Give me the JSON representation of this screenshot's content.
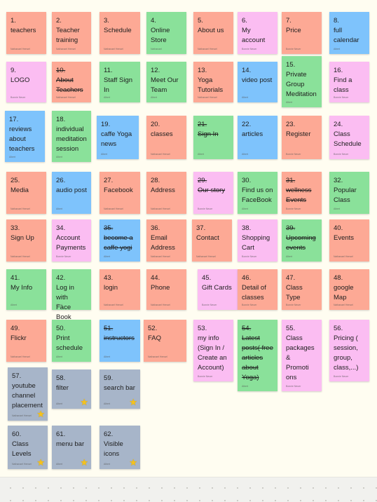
{
  "notes": [
    {
      "text": "1.\nteachers",
      "author": "Nathanael Hensel",
      "color": "#fda995"
    },
    {
      "text": "2.\nTeacher\ntraining",
      "author": "Nathanael Hensel",
      "color": "#fda995"
    },
    {
      "text": "3.\nSchedule",
      "author": "Nathanael Hensel",
      "color": "#fda995"
    },
    {
      "text": "4.\nOnline\nStore",
      "author": "Nathanael",
      "color": "#8ae19a"
    },
    {
      "text": "5.\nAbout us",
      "author": "Nathanael Hensel",
      "color": "#fda995"
    },
    {
      "text": "6.\nMy\naccount",
      "author": "Bonnie Neuer",
      "color": "#fbbdf2"
    },
    {
      "text": "7.\nPrice",
      "author": "Bonnie Neuer",
      "color": "#fda995"
    },
    {
      "text": "8.\nfull\ncalendar",
      "author": "Albert",
      "color": "#7ec3fc"
    },
    {
      "text": "9.\nLOGO",
      "author": "Bonnie Neuer",
      "color": "#fbbdf2"
    },
    {
      "text": "10.\nAbout\nTeachers",
      "author": "Nathanael Hensel",
      "color": "#fda995",
      "strike": true
    },
    {
      "text": "11.\nStaff Sign\nIn",
      "author": "Albert",
      "color": "#8ae19a"
    },
    {
      "text": "12.\nMeet Our\nTeam",
      "author": "Albert",
      "color": "#8ae19a"
    },
    {
      "text": "13.\nYoga\nTutorials",
      "author": "Nathanael Hensel",
      "color": "#fda995"
    },
    {
      "text": "14.\nvideo post",
      "author": "Albert",
      "color": "#7ec3fc"
    },
    {
      "text": "15.\nPrivate\nGroup\nMeditation",
      "author": "Albert",
      "color": "#8ae19a"
    },
    {
      "text": "16.\nFind a\nclass",
      "author": "Bonnie Neuer",
      "color": "#fbbdf2"
    },
    {
      "text": "17.\nreviews\nabout\nteachers",
      "author": "Albert",
      "color": "#7ec3fc"
    },
    {
      "text": "18.\nindividual\nmeditation\nsession",
      "author": "Albert",
      "color": "#8ae19a"
    },
    {
      "text": "19.\ncaffe Yoga\nnews",
      "author": "Albert",
      "color": "#7ec3fc"
    },
    {
      "text": "20.\nclasses",
      "author": "Nathanael Hensel",
      "color": "#fda995"
    },
    {
      "text": "21.\nSign In",
      "author": "Albert",
      "color": "#8ae19a",
      "strike": true
    },
    {
      "text": "22.\narticles",
      "author": "Albert",
      "color": "#7ec3fc"
    },
    {
      "text": "23.\nRegister",
      "author": "Bonnie Neuer",
      "color": "#fda995"
    },
    {
      "text": "24.\nClass\nSchedule",
      "author": "Bonnie Neuer",
      "color": "#fbbdf2"
    },
    {
      "text": "25.\nMedia",
      "author": "Nathanael Hensel",
      "color": "#fda995"
    },
    {
      "text": "26.\naudio post",
      "author": "Albert",
      "color": "#7ec3fc"
    },
    {
      "text": "27.\nFacebook",
      "author": "Nathanael Hensel",
      "color": "#fda995"
    },
    {
      "text": "28.\nAddress",
      "author": "Nathanael Hensel",
      "color": "#fda995"
    },
    {
      "text": "29.\nOur story",
      "author": "Bonnie Neuer",
      "color": "#fbbdf2",
      "strike": true
    },
    {
      "text": "30.\nFind us on\nFaceBook",
      "author": "Albert",
      "color": "#8ae19a"
    },
    {
      "text": "31.\nwellness\nEvents",
      "author": "Bonnie Neuer",
      "color": "#fda995",
      "strike": true
    },
    {
      "text": "32.\nPopular\nClass",
      "author": "Albert",
      "color": "#8ae19a"
    },
    {
      "text": "33.\nSign Up",
      "author": "Nathanael Hensel",
      "color": "#fda995"
    },
    {
      "text": "34.\nAccount\nPayments",
      "author": "Bonnie Neuer",
      "color": "#fbbdf2"
    },
    {
      "text": "35.\nbecome a\ncaffe yogi",
      "author": "Albert",
      "color": "#7ec3fc",
      "strike": true
    },
    {
      "text": "36.\nEmail\nAddress",
      "author": "Nathanael Hensel",
      "color": "#fda995"
    },
    {
      "text": "37.\nContact",
      "author": "Nathanael Hensel",
      "color": "#fda995"
    },
    {
      "text": "38.\nShopping\nCart",
      "author": "Bonnie Neuer",
      "color": "#fbbdf2"
    },
    {
      "text": "39.\nUpcoming\nevents",
      "author": "Albert",
      "color": "#8ae19a",
      "strike": true
    },
    {
      "text": "40.\nEvents",
      "author": "Nathanael Hensel",
      "color": "#fda995"
    },
    {
      "text": "41.\nMy Info",
      "author": "Albert",
      "color": "#8ae19a"
    },
    {
      "text": "42.\nLog in with\nFace Book",
      "author": "Albert",
      "color": "#8ae19a"
    },
    {
      "text": "43.\nlogin",
      "author": "Nathanael Hensel",
      "color": "#fda995"
    },
    {
      "text": "44.\nPhone",
      "author": "Nathanael Hensel",
      "color": "#fda995"
    },
    {
      "text": "45.\nGift Cards",
      "author": "Bonnie Neuer",
      "color": "#fbbdf2"
    },
    {
      "text": "46.\nDetail of\nclasses",
      "author": "Bonnie Neuer",
      "color": "#fda995"
    },
    {
      "text": "47.\nClass\nType",
      "author": "Bonnie Neuer",
      "color": "#fda995"
    },
    {
      "text": "48.\ngoogle\nMap",
      "author": "Nathanael Hensel",
      "color": "#fda995"
    },
    {
      "text": "49.\nFlickr",
      "author": "Nathanael Hensel",
      "color": "#fda995"
    },
    {
      "text": "50.\nPrint\nschedule",
      "author": "Albert",
      "color": "#8ae19a"
    },
    {
      "text": "51.\ninstructors",
      "author": "Albert",
      "color": "#7ec3fc",
      "strike": true
    },
    {
      "text": "52.\nFAQ",
      "author": "Nathanael Hensel",
      "color": "#fda995"
    },
    {
      "text": "53.\nmy info\n(Sign In /\nCreate an\nAccount)",
      "author": "Bonnie Neuer",
      "color": "#fbbdf2"
    },
    {
      "text": "54.\nLatest\nposts( free\narticles\nabout\nYoga)",
      "author": "Albert",
      "color": "#8ae19a",
      "strike": true
    },
    {
      "text": "55.\nClass\npackages\n&\nPromoti\nons",
      "author": "Bonnie Neuer",
      "color": "#fbbdf2"
    },
    {
      "text": "56.\nPricing (\nsession,\ngroup,\nclass,...)",
      "author": "Bonnie Neuer",
      "color": "#fbbdf2"
    },
    {
      "text": "57.\nyoutube\nchannel\nplacement",
      "author": "Nathanael Hensel",
      "color": "#a7b5c9",
      "star": true
    },
    {
      "text": "58.\nfilter",
      "author": "Albert",
      "color": "#a7b5c9",
      "star": true
    },
    {
      "text": "59.\nsearch bar",
      "author": "Albert",
      "color": "#a7b5c9",
      "star": true
    },
    {
      "text": "60.\nClass\nLevels",
      "author": "Nathanael Hensel",
      "color": "#a7b5c9",
      "star": true
    },
    {
      "text": "61.\nmenu bar",
      "author": "Albert",
      "color": "#a7b5c9",
      "star": true
    },
    {
      "text": "62.\nVisible\nicons",
      "author": "Albert",
      "color": "#a7b5c9",
      "star": true
    }
  ]
}
